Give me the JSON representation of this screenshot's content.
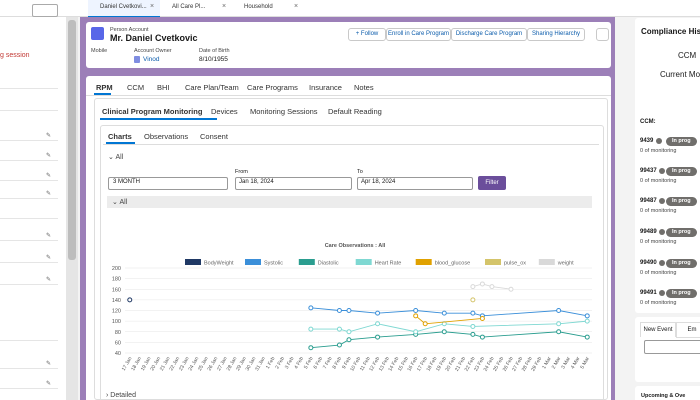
{
  "tabs": [
    "Daniel Cvetkovi...",
    "All Care Pl...",
    "Household"
  ],
  "left_panel": {
    "alert": "g session"
  },
  "header": {
    "object": "Person Account",
    "name": "Mr. Daniel Cvetkovic",
    "buttons": [
      "+ Follow",
      "Enroll in Care Program",
      "Discharge Care Program",
      "Sharing Hierarchy"
    ],
    "fields": [
      {
        "label": "Mobile"
      },
      {
        "label": "Account Owner",
        "value": "Vinod"
      },
      {
        "label": "Date of Birth",
        "value": "8/10/1955"
      }
    ]
  },
  "main_tabs": [
    "RPM",
    "CCM",
    "BHI",
    "Care Plan/Team",
    "Care Programs",
    "Insurance",
    "Notes"
  ],
  "sub_tabs": [
    "Clinical Program Monitoring",
    "Devices",
    "Monitoring Sessions",
    "Default Reading"
  ],
  "view_tabs": [
    "Charts",
    "Observations",
    "Consent"
  ],
  "filters": {
    "section": "All",
    "range": "3 MONTH",
    "from_label": "From",
    "from": "Jan 18, 2024",
    "to_label": "To",
    "to": "Apr 18, 2024",
    "button": "Filter",
    "chart_section": "All"
  },
  "detailed": "Detailed",
  "chart_data": {
    "type": "line",
    "title": "Care Observations : All",
    "span_gaps": true,
    "grid": true,
    "categories": [
      "17 Jan",
      "18 Jan",
      "19 Jan",
      "20 Jan",
      "21 Jan",
      "22 Jan",
      "23 Jan",
      "24 Jan",
      "25 Jan",
      "26 Jan",
      "27 Jan",
      "28 Jan",
      "29 Jan",
      "30 Jan",
      "31 Jan",
      "1 Feb",
      "2 Feb",
      "3 Feb",
      "4 Feb",
      "5 Feb",
      "6 Feb",
      "7 Feb",
      "8 Feb",
      "9 Feb",
      "10 Feb",
      "11 Feb",
      "12 Feb",
      "13 Feb",
      "14 Feb",
      "15 Feb",
      "16 Feb",
      "17 Feb",
      "18 Feb",
      "19 Feb",
      "20 Feb",
      "21 Feb",
      "22 Feb",
      "23 Feb",
      "24 Feb",
      "25 Feb",
      "26 Feb",
      "27 Feb",
      "28 Feb",
      "29 Feb",
      "1 Mar",
      "2 Mar",
      "3 Mar",
      "4 Mar",
      "5 Mar"
    ],
    "ylim": [
      40,
      200
    ],
    "yticks": [
      40,
      60,
      80,
      100,
      120,
      140,
      160,
      180,
      200
    ],
    "series": [
      {
        "name": "BodyWeight",
        "color": "#1f3864",
        "values": [
          140,
          null,
          null,
          null,
          null,
          null,
          null,
          null,
          null,
          null,
          null,
          null,
          null,
          null,
          null,
          null,
          null,
          null,
          null,
          null,
          null,
          null,
          null,
          null,
          null,
          null,
          null,
          null,
          null,
          null,
          null,
          null,
          null,
          null,
          null,
          null,
          null,
          null,
          null,
          null,
          null,
          null,
          null,
          null,
          null,
          null,
          null,
          null,
          null
        ]
      },
      {
        "name": "Systolic",
        "color": "#3b8fd9",
        "values": [
          null,
          null,
          null,
          null,
          null,
          null,
          null,
          null,
          null,
          null,
          null,
          null,
          null,
          null,
          null,
          null,
          null,
          null,
          null,
          125,
          null,
          null,
          120,
          120,
          null,
          null,
          115,
          null,
          null,
          null,
          120,
          null,
          null,
          115,
          null,
          null,
          115,
          110,
          null,
          null,
          null,
          null,
          null,
          null,
          null,
          120,
          null,
          null,
          110
        ]
      },
      {
        "name": "Diastolic",
        "color": "#2a9d8f",
        "values": [
          null,
          null,
          null,
          null,
          null,
          null,
          null,
          null,
          null,
          null,
          null,
          null,
          null,
          null,
          null,
          null,
          null,
          null,
          null,
          50,
          null,
          null,
          55,
          65,
          null,
          null,
          70,
          null,
          null,
          null,
          75,
          null,
          null,
          80,
          null,
          null,
          75,
          70,
          null,
          null,
          null,
          null,
          null,
          null,
          null,
          80,
          null,
          null,
          70
        ]
      },
      {
        "name": "Heart Rate",
        "color": "#7fd8d2",
        "values": [
          null,
          null,
          null,
          null,
          null,
          null,
          null,
          null,
          null,
          null,
          null,
          null,
          null,
          null,
          null,
          null,
          null,
          null,
          null,
          85,
          null,
          null,
          85,
          80,
          null,
          null,
          95,
          null,
          null,
          null,
          80,
          null,
          null,
          95,
          null,
          null,
          90,
          null,
          null,
          null,
          null,
          null,
          null,
          null,
          null,
          95,
          null,
          null,
          100
        ]
      },
      {
        "name": "blood_glucose",
        "color": "#e0a100",
        "values": [
          null,
          null,
          null,
          null,
          null,
          null,
          null,
          null,
          null,
          null,
          null,
          null,
          null,
          null,
          null,
          null,
          null,
          null,
          null,
          null,
          null,
          null,
          null,
          null,
          null,
          null,
          null,
          null,
          null,
          null,
          110,
          95,
          null,
          null,
          null,
          null,
          null,
          105,
          null,
          null,
          null,
          null,
          null,
          null,
          null,
          null,
          null,
          null,
          null
        ]
      },
      {
        "name": "pulse_ox",
        "color": "#d4c46a",
        "values": [
          null,
          null,
          null,
          null,
          null,
          null,
          null,
          null,
          null,
          null,
          null,
          null,
          null,
          null,
          null,
          null,
          null,
          null,
          null,
          null,
          null,
          null,
          null,
          null,
          null,
          null,
          null,
          null,
          null,
          null,
          null,
          null,
          null,
          null,
          null,
          null,
          140,
          null,
          null,
          null,
          null,
          null,
          null,
          null,
          null,
          null,
          null,
          null,
          null
        ]
      },
      {
        "name": "weight",
        "color": "#d9d9d9",
        "values": [
          null,
          null,
          null,
          null,
          null,
          null,
          null,
          null,
          null,
          null,
          null,
          null,
          null,
          null,
          null,
          null,
          null,
          null,
          null,
          null,
          null,
          null,
          null,
          null,
          null,
          null,
          null,
          null,
          null,
          null,
          null,
          null,
          null,
          null,
          null,
          null,
          165,
          170,
          165,
          null,
          160,
          null,
          null,
          null,
          null,
          null,
          null,
          null,
          null
        ]
      }
    ]
  },
  "compliance": {
    "title": "Compliance Histor",
    "program": "CCM",
    "period": "Current Mon",
    "section": "CCM:",
    "items": [
      {
        "code": "9439",
        "status": "In prog",
        "note": "0 of monitoring"
      },
      {
        "code": "99437",
        "status": "In prog",
        "note": "0 of monitoring"
      },
      {
        "code": "99487",
        "status": "In prog",
        "note": "0 of monitoring"
      },
      {
        "code": "99489",
        "status": "In prog",
        "note": "0 of monitoring"
      },
      {
        "code": "99490",
        "status": "In prog",
        "note": "0 of monitoring"
      },
      {
        "code": "99491",
        "status": "In prog",
        "note": "0 of monitoring"
      }
    ]
  },
  "activity": {
    "tabs": [
      "New Event",
      "Em"
    ],
    "upcoming": "Upcoming & Ove"
  }
}
